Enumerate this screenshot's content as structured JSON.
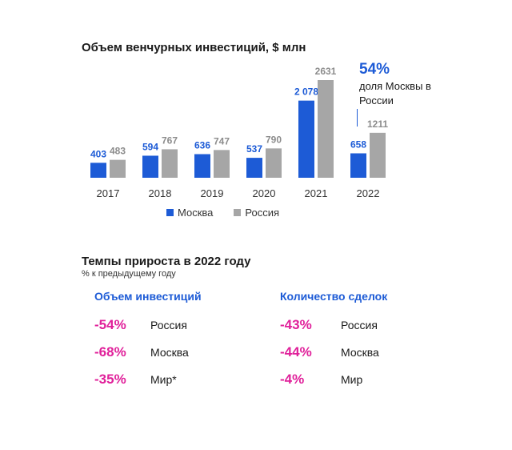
{
  "chart_data": {
    "type": "bar",
    "title": "Объем венчурных инвестиций, $ млн",
    "categories": [
      "2017",
      "2018",
      "2019",
      "2020",
      "2021",
      "2022"
    ],
    "series": [
      {
        "name": "Москва",
        "values": [
          403,
          594,
          636,
          537,
          2078,
          658
        ],
        "labels": [
          "403",
          "594",
          "636",
          "537",
          "2 078",
          "658"
        ],
        "color": "#1d5bd6"
      },
      {
        "name": "Россия",
        "values": [
          483,
          767,
          747,
          790,
          2631,
          1211
        ],
        "labels": [
          "483",
          "767",
          "747",
          "790",
          "2631",
          "1211"
        ],
        "color": "#a6a6a6"
      }
    ],
    "xlabel": "",
    "ylabel": "",
    "ylim": [
      0,
      2631
    ],
    "grid": false,
    "legend": "bottom",
    "annotation": {
      "value": "54%",
      "text": "доля Москвы в России"
    }
  },
  "growth": {
    "title": "Темпы прироста в 2022 году",
    "subtitle": "% к предыдущему году",
    "columns": [
      {
        "heading": "Объем инвестиций",
        "rows": [
          {
            "pct": "-54%",
            "label": "Россия"
          },
          {
            "pct": "-68%",
            "label": "Москва"
          },
          {
            "pct": "-35%",
            "label": "Мир*"
          }
        ]
      },
      {
        "heading": "Количество сделок",
        "rows": [
          {
            "pct": "-43%",
            "label": "Россия"
          },
          {
            "pct": "-44%",
            "label": "Москва"
          },
          {
            "pct": "-4%",
            "label": "Мир"
          }
        ]
      }
    ]
  },
  "colors": {
    "accent_blue": "#1d5bd6",
    "grey": "#a6a6a6",
    "magenta": "#e0209a"
  }
}
